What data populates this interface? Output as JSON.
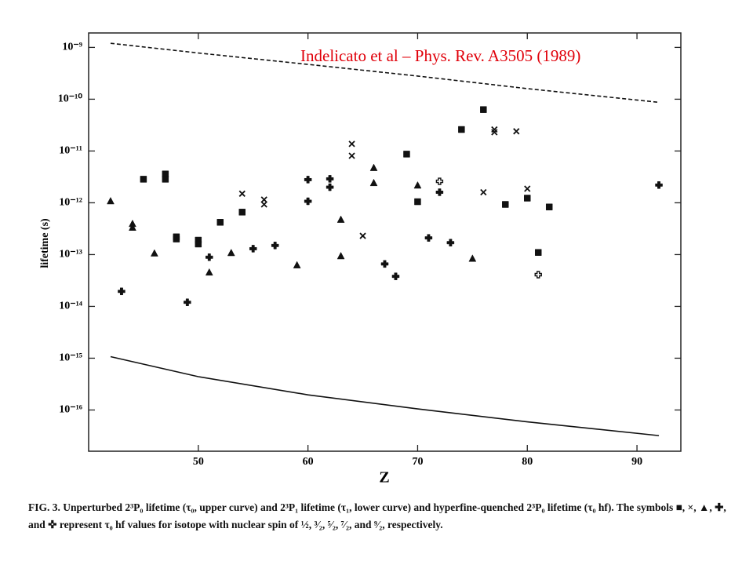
{
  "chart_data": {
    "type": "scatter",
    "annotation": "Indelicato et al – Phys. Rev. A3505 (1989)",
    "xlabel": "Z",
    "ylabel": "lifetime (s)",
    "caption": "FIG. 3. Unperturbed 2³P₀ lifetime (τ₀, upper curve) and 2³P₁ lifetime (τ₁, lower curve) and hyperfine-quenched 2³P₀ lifetime (τ₀ hf). The symbols ■, ×, ▲, ✚, and ✜ represent τ₀ hf values for isotope with nuclear spin of ½, ³⁄₂, ⁵⁄₂, ⁷⁄₂, and ⁹⁄₂, respectively.",
    "xlim": [
      40,
      94
    ],
    "xticks": [
      50,
      60,
      70,
      80,
      90
    ],
    "ylim": [
      1.6e-17,
      1.9e-09
    ],
    "ylog": true,
    "yticks": [
      {
        "value": 1e-09,
        "label": "10⁻⁹"
      },
      {
        "value": 1e-10,
        "label": "10⁻¹⁰"
      },
      {
        "value": 1e-11,
        "label": "10⁻¹¹"
      },
      {
        "value": 1e-12,
        "label": "10⁻¹²"
      },
      {
        "value": 1e-13,
        "label": "10⁻¹³"
      },
      {
        "value": 1e-14,
        "label": "10⁻¹⁴"
      },
      {
        "value": 1e-15,
        "label": "10⁻¹⁵"
      },
      {
        "value": 1e-16,
        "label": "10⁻¹⁶"
      }
    ],
    "series": [
      {
        "mode": "line",
        "style": "dashed",
        "color": "#111",
        "x": [
          42,
          50,
          60,
          70,
          80,
          92
        ],
        "values": [
          1.2e-09,
          7.8e-10,
          4.7e-10,
          2.8e-10,
          1.6e-10,
          8.7e-11
        ]
      },
      {
        "mode": "line",
        "style": "solid",
        "color": "#111",
        "x": [
          42,
          50,
          60,
          70,
          80,
          92
        ],
        "values": [
          1.07e-15,
          4.4e-16,
          1.96e-16,
          1.05e-16,
          5.9e-17,
          3.2e-17
        ]
      },
      {
        "mode": "markers",
        "marker": "square",
        "color": "#111",
        "x": [
          45,
          47,
          47,
          48,
          48,
          50,
          50,
          52,
          54,
          69,
          70,
          74,
          76,
          78,
          80,
          81,
          82
        ],
        "values": [
          2.85e-12,
          3.6e-12,
          2.85e-12,
          2.2e-13,
          2e-13,
          1.9e-13,
          1.6e-13,
          4.2e-13,
          6.6e-13,
          8.7e-12,
          1.05e-12,
          2.6e-11,
          6.3e-11,
          9.3e-13,
          1.23e-12,
          1.1e-13,
          8.3e-13
        ]
      },
      {
        "mode": "markers",
        "marker": "x",
        "color": "#111",
        "x": [
          54,
          56,
          56,
          64,
          64,
          65,
          76,
          77,
          77,
          79,
          80
        ],
        "values": [
          1.5e-12,
          1.15e-12,
          9.3e-13,
          1.37e-11,
          8.1e-12,
          2.3e-13,
          1.6e-12,
          2.6e-11,
          2.3e-11,
          2.4e-11,
          1.87e-12
        ]
      },
      {
        "mode": "markers",
        "marker": "triangle",
        "color": "#111",
        "x": [
          42,
          44,
          44,
          46,
          51,
          53,
          59,
          63,
          63,
          66,
          66,
          70,
          75
        ],
        "values": [
          1.07e-12,
          3.9e-13,
          3.3e-13,
          1.05e-13,
          4.5e-14,
          1.07e-13,
          6.2e-14,
          4.7e-13,
          9.3e-14,
          4.7e-12,
          2.4e-12,
          2.15e-12,
          8.3e-14
        ]
      },
      {
        "mode": "markers",
        "marker": "plus",
        "color": "#111",
        "x": [
          43,
          49,
          51,
          55,
          57,
          60,
          60,
          62,
          62,
          67,
          68,
          71,
          72,
          73,
          92
        ],
        "values": [
          1.95e-14,
          1.2e-14,
          8.9e-14,
          1.3e-13,
          1.5e-13,
          2.8e-12,
          1.07e-12,
          2.9e-12,
          2e-12,
          6.6e-14,
          3.8e-14,
          2.1e-13,
          1.6e-12,
          1.7e-13,
          2.2e-12
        ]
      },
      {
        "mode": "markers",
        "marker": "open-plus",
        "color": "#111",
        "x": [
          72,
          81
        ],
        "values": [
          2.6e-12,
          4.1e-14
        ]
      }
    ]
  }
}
